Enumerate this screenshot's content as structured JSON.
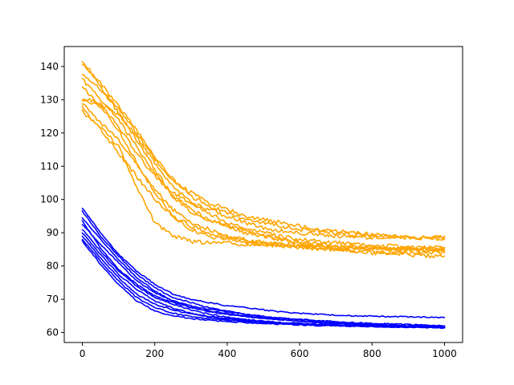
{
  "chart_data": {
    "type": "line",
    "title": "",
    "xlabel": "",
    "ylabel": "",
    "xlim": [
      -50,
      1050
    ],
    "ylim": [
      57,
      146
    ],
    "grid": false,
    "legend": "none",
    "x_ticks": [
      0,
      200,
      400,
      600,
      800,
      1000
    ],
    "y_ticks": [
      60,
      70,
      80,
      90,
      100,
      110,
      120,
      130,
      140
    ],
    "x": [
      0,
      50,
      100,
      150,
      200,
      250,
      300,
      350,
      400,
      450,
      500,
      550,
      600,
      650,
      700,
      750,
      800,
      850,
      900,
      950,
      1000
    ],
    "series": [
      {
        "group": "orange",
        "color": "#ffa500",
        "values": [
          142,
          134,
          126,
          118,
          109,
          101,
          96,
          94,
          92,
          90,
          89,
          88,
          87,
          87,
          86,
          86,
          85.5,
          85,
          85,
          84.5,
          84.5
        ]
      },
      {
        "group": "orange",
        "color": "#ffa500",
        "values": [
          141,
          135,
          128,
          121,
          113,
          106,
          101,
          98,
          96,
          94,
          93,
          92,
          91,
          90.5,
          90,
          89.5,
          89,
          89,
          88.5,
          88.5,
          88.5
        ]
      },
      {
        "group": "orange",
        "color": "#ffa500",
        "values": [
          138,
          133,
          127,
          120,
          112,
          106,
          102,
          99,
          97,
          95,
          94,
          93,
          92,
          91,
          90.5,
          90,
          89.5,
          89,
          89,
          88.5,
          88
        ]
      },
      {
        "group": "orange",
        "color": "#ffa500",
        "values": [
          136,
          130,
          124,
          116,
          108,
          101,
          97,
          94,
          92,
          91,
          90,
          89,
          88,
          87.5,
          87,
          86.5,
          86,
          86,
          85.5,
          85.5,
          85.5
        ]
      },
      {
        "group": "orange",
        "color": "#ffa500",
        "values": [
          134,
          128,
          121,
          111,
          102,
          95,
          91,
          89,
          88,
          87,
          86.5,
          86,
          85.5,
          85,
          85,
          84.5,
          84.5,
          84,
          84,
          84,
          84
        ]
      },
      {
        "group": "orange",
        "color": "#ffa500",
        "values": [
          130.5,
          129,
          122,
          114,
          107,
          102,
          99,
          97,
          95,
          93,
          91.5,
          90.5,
          90,
          89.5,
          89,
          89,
          88.5,
          88.5,
          88.5,
          88.5,
          89
        ]
      },
      {
        "group": "orange",
        "color": "#ffa500",
        "values": [
          130,
          128,
          126,
          119,
          111,
          104,
          99,
          96,
          93,
          91,
          89,
          88,
          87,
          86,
          86,
          85.5,
          85.5,
          85,
          85,
          85,
          85
        ]
      },
      {
        "group": "orange",
        "color": "#ffa500",
        "values": [
          129,
          123,
          118,
          111,
          103,
          97,
          93,
          91,
          89,
          88,
          87,
          86.5,
          86,
          86,
          85.5,
          85.5,
          85.5,
          85,
          85,
          85,
          85
        ]
      },
      {
        "group": "orange",
        "color": "#ffa500",
        "values": [
          127.5,
          121,
          114,
          107,
          100,
          95,
          92,
          90,
          88.5,
          87.5,
          87,
          86.5,
          86,
          85.5,
          85,
          84.5,
          84,
          84,
          83.5,
          83,
          83
        ]
      },
      {
        "group": "orange",
        "color": "#ffa500",
        "values": [
          126.5,
          122,
          116,
          104,
          93,
          89,
          87.5,
          87,
          87,
          86.5,
          86.5,
          86,
          86,
          86,
          85.5,
          85.5,
          85.5,
          85.5,
          85.5,
          85.5,
          85.5
        ]
      },
      {
        "group": "blue",
        "color": "#0000ff",
        "values": [
          97.5,
          90,
          83.5,
          78.5,
          74.5,
          71.5,
          70,
          69,
          68,
          67.5,
          66.8,
          66.2,
          65.8,
          65.5,
          65.2,
          65,
          64.9,
          64.8,
          64.7,
          64.6,
          64.5
        ]
      },
      {
        "group": "blue",
        "color": "#0000ff",
        "values": [
          96.5,
          89,
          83,
          77.5,
          73.5,
          70.5,
          69,
          67.5,
          66.5,
          65.5,
          64.8,
          64.3,
          64,
          63.6,
          63.3,
          63,
          62.8,
          62.6,
          62.4,
          62.2,
          62
        ]
      },
      {
        "group": "blue",
        "color": "#0000ff",
        "values": [
          94.5,
          88,
          82,
          76.5,
          72.5,
          69.5,
          67.5,
          66.3,
          65.5,
          64.8,
          64.2,
          63.8,
          63.4,
          63,
          62.7,
          62.5,
          62.3,
          62.1,
          62,
          61.9,
          61.8
        ]
      },
      {
        "group": "blue",
        "color": "#0000ff",
        "values": [
          93.5,
          85.5,
          79,
          74.5,
          71,
          69,
          67.5,
          66.5,
          65.7,
          65,
          64.4,
          63.8,
          63.4,
          63,
          62.7,
          62.4,
          62.2,
          62,
          61.9,
          61.8,
          61.7
        ]
      },
      {
        "group": "blue",
        "color": "#0000ff",
        "values": [
          92.5,
          86.5,
          81,
          75.5,
          72,
          69.5,
          68,
          67,
          66.2,
          65.5,
          64.8,
          64.2,
          63.8,
          63.4,
          63,
          62.7,
          62.5,
          62.3,
          62.1,
          62,
          61.9
        ]
      },
      {
        "group": "blue",
        "color": "#0000ff",
        "values": [
          91,
          84.5,
          78.5,
          74,
          70.5,
          68.5,
          66.8,
          65.5,
          64.6,
          63.9,
          63.4,
          63,
          62.7,
          62.4,
          62.2,
          62,
          61.9,
          61.8,
          61.7,
          61.6,
          61.5
        ]
      },
      {
        "group": "blue",
        "color": "#0000ff",
        "values": [
          90,
          83.5,
          77.5,
          73,
          69.5,
          67.3,
          65.8,
          64.8,
          64,
          63.5,
          63.1,
          62.8,
          62.5,
          62.3,
          62.1,
          61.9,
          61.8,
          61.7,
          61.6,
          61.5,
          61.5
        ]
      },
      {
        "group": "blue",
        "color": "#0000ff",
        "values": [
          89,
          82.5,
          76.5,
          71.5,
          68.5,
          66.8,
          65.6,
          64.8,
          64.2,
          63.7,
          63.3,
          63,
          62.7,
          62.4,
          62.2,
          62,
          61.9,
          61.8,
          61.7,
          61.6,
          61.5
        ]
      },
      {
        "group": "blue",
        "color": "#0000ff",
        "values": [
          88,
          81.5,
          75.5,
          70.5,
          67.5,
          65.8,
          64.8,
          64.2,
          63.7,
          63.3,
          63,
          62.7,
          62.5,
          62.3,
          62.2,
          62,
          61.9,
          61.8,
          61.7,
          61.6,
          61.5
        ]
      },
      {
        "group": "blue",
        "color": "#0000ff",
        "values": [
          87.5,
          80.5,
          74.5,
          69.5,
          66.5,
          65,
          64.2,
          63.7,
          63.3,
          63,
          62.7,
          62.5,
          62.3,
          62.1,
          62,
          61.9,
          61.8,
          61.7,
          61.6,
          61.5,
          61.4
        ]
      }
    ]
  }
}
